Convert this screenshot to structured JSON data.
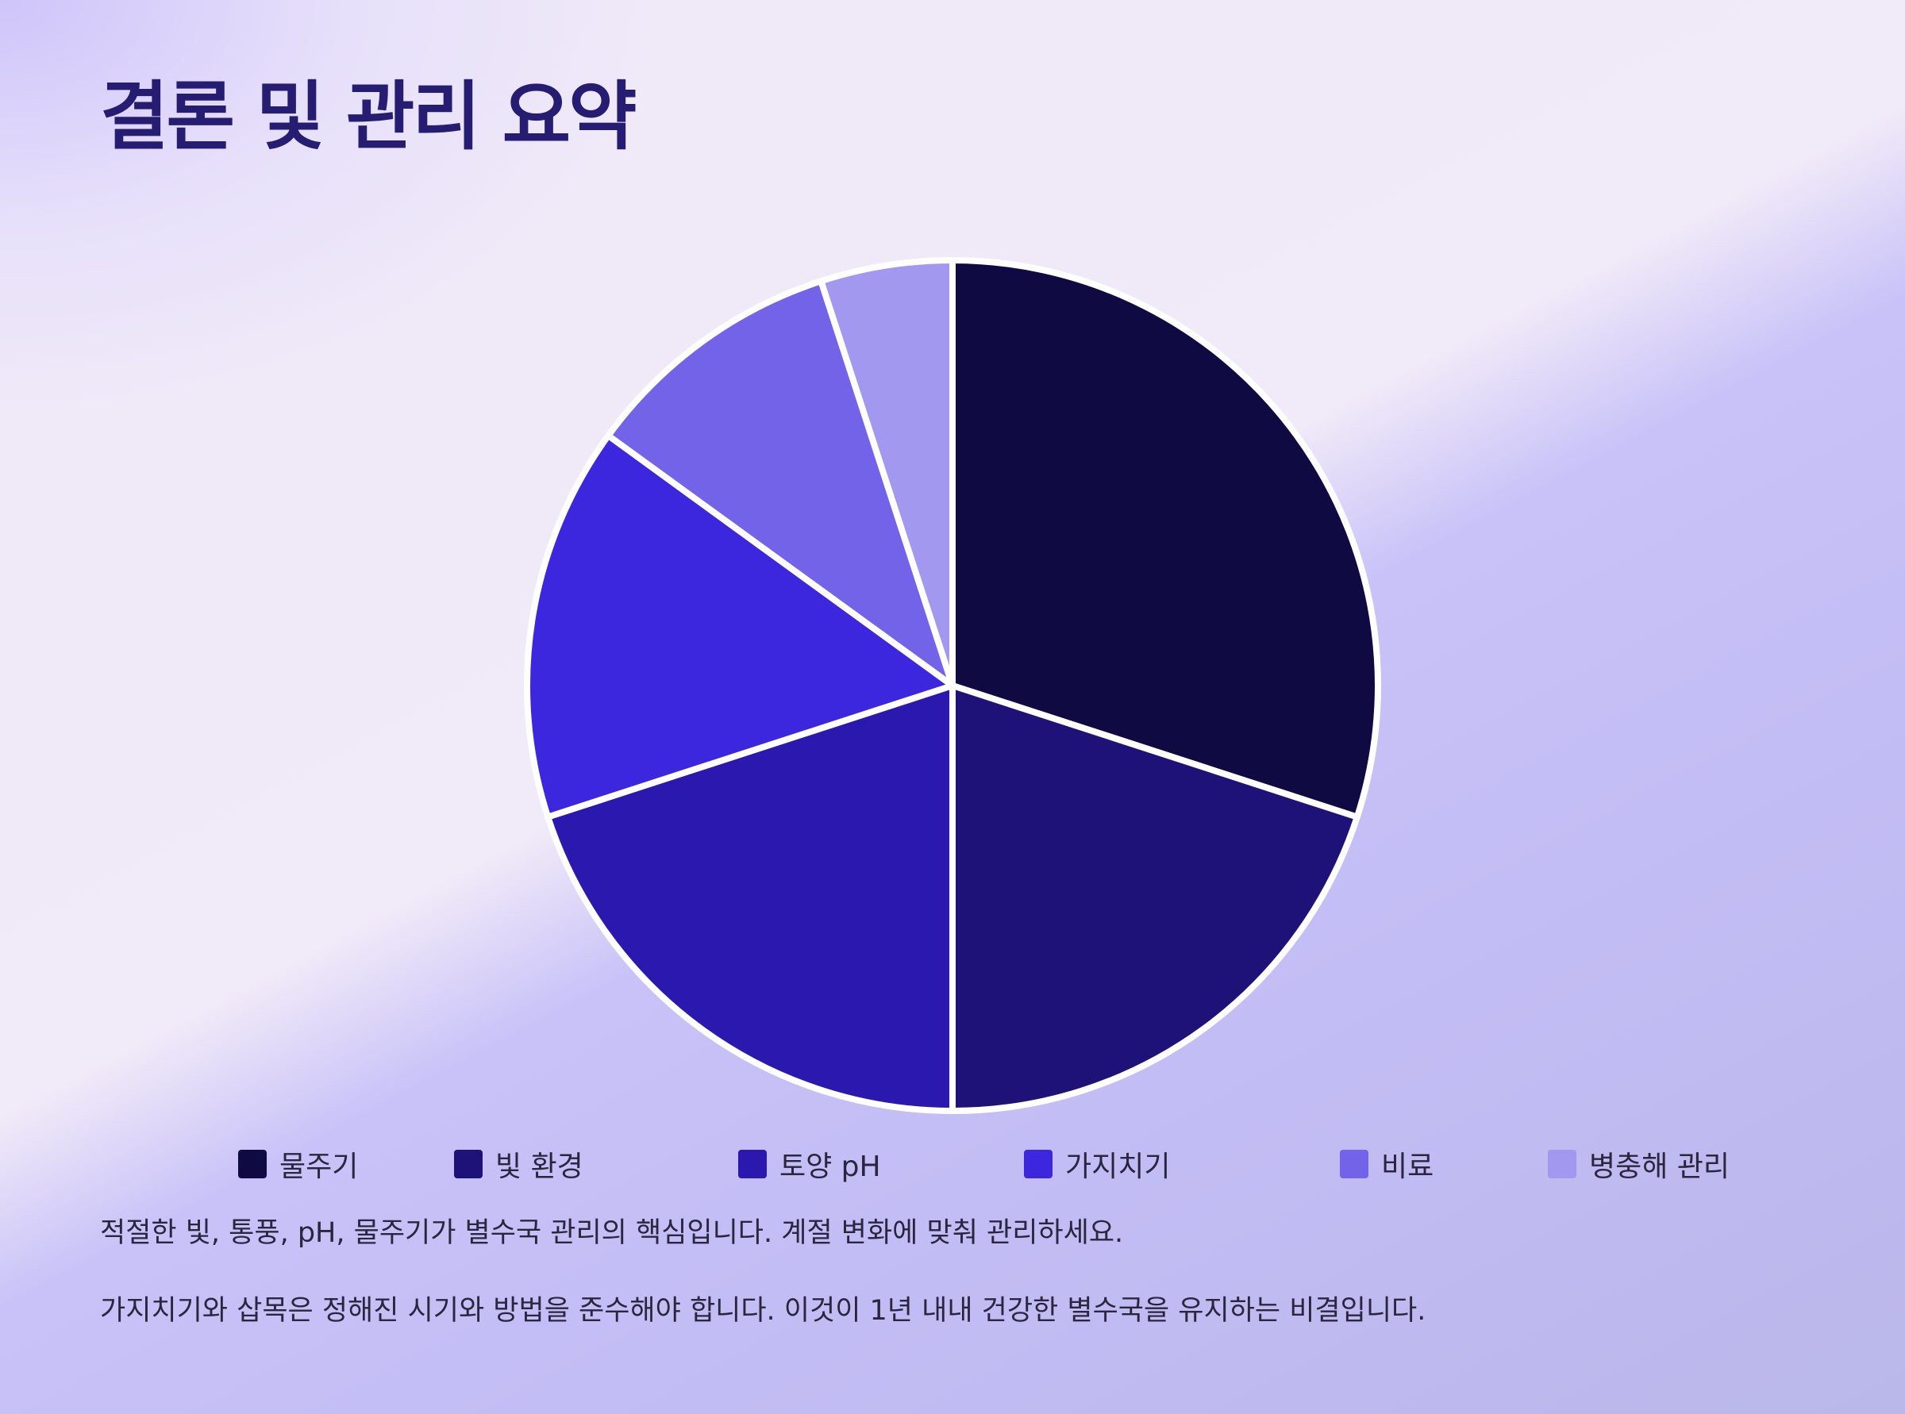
{
  "title": "결론 및 관리 요약",
  "chart_data": {
    "type": "pie",
    "categories": [
      "물주기",
      "빛 환경",
      "토양 pH",
      "가지치기",
      "비료",
      "병충해 관리"
    ],
    "values": [
      30,
      20,
      20,
      15,
      10,
      5
    ],
    "colors": [
      "#100a42",
      "#1e1278",
      "#2b18ae",
      "#3d27de",
      "#7263e9",
      "#a298ef"
    ],
    "start_angle": "top",
    "direction": "clockwise",
    "legend_position": "bottom"
  },
  "notes": [
    "적절한 빛, 통풍, pH, 물주기가 별수국 관리의 핵심입니다. 계절 변화에 맞춰 관리하세요.",
    "가지치기와 삽목은 정해진 시기와 방법을 준수해야 합니다. 이것이 1년 내내 건강한 별수국을 유지하는 비결입니다."
  ]
}
